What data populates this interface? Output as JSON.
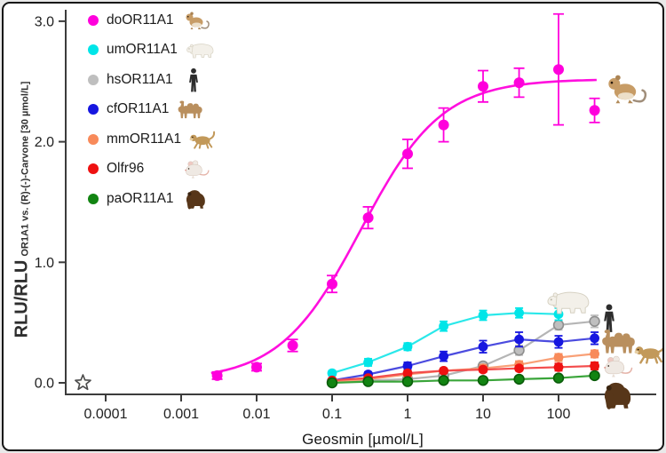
{
  "figure": {
    "background": "#ffffff",
    "border_color": "#141414",
    "axis_color": "#3c3c3c"
  },
  "legend": {
    "items": [
      {
        "label": "doOR11A1",
        "color": "#ff00dc",
        "icon": "gerbil-icon"
      },
      {
        "label": "umOR11A1",
        "color": "#00e5e8",
        "icon": "polar-bear-icon"
      },
      {
        "label": "hsOR11A1",
        "color": "#bfbfbf",
        "icon": "human-icon"
      },
      {
        "label": "cfOR11A1",
        "color": "#1616e0",
        "icon": "camel-icon"
      },
      {
        "label": "mmOR11A1",
        "color": "#f88a5a",
        "icon": "monkey-icon"
      },
      {
        "label": "Olfr96",
        "color": "#ee1111",
        "icon": "mouse-icon"
      },
      {
        "label": "paOR11A1",
        "color": "#128412",
        "icon": "gorilla-icon"
      }
    ]
  },
  "chart_data": {
    "type": "scatter",
    "subtype": "dose-response curves with error bars, log x-axis",
    "title": "",
    "xlabel": "Geosmin [µmol/L]",
    "ylabel_main": "RLU/RLU",
    "ylabel_sub": "OR1A1 vs. (R)-(-)-Carvone [30 µmol/L]",
    "x_scale": "log10",
    "xlim": [
      3e-05,
      700
    ],
    "ylim": [
      -0.1,
      3.1
    ],
    "grid": false,
    "legend_position": "top-left inside plot",
    "x_ticks": [
      {
        "value": 0.0001,
        "label": "0.0001"
      },
      {
        "value": 0.001,
        "label": "0.001"
      },
      {
        "value": 0.01,
        "label": "0.01"
      },
      {
        "value": 0.1,
        "label": "0.1"
      },
      {
        "value": 1,
        "label": "1"
      },
      {
        "value": 10,
        "label": "10"
      },
      {
        "value": 100,
        "label": "100"
      }
    ],
    "y_ticks": [
      {
        "value": 0,
        "label": "0.0"
      },
      {
        "value": 1,
        "label": "1.0"
      },
      {
        "value": 2,
        "label": "2.0"
      },
      {
        "value": 3,
        "label": "3.0"
      }
    ],
    "control_marker": {
      "shape": "open-star",
      "x": 5e-05,
      "y": 0
    },
    "series": [
      {
        "name": "doOR11A1",
        "color": "#ff00dc",
        "line_color": "#ff0fde",
        "x": [
          0.003,
          0.01,
          0.03,
          0.1,
          0.3,
          1,
          3,
          10,
          30,
          100,
          300
        ],
        "y": [
          0.06,
          0.13,
          0.31,
          0.82,
          1.37,
          1.9,
          2.14,
          2.46,
          2.49,
          2.6,
          2.26
        ],
        "err": [
          0.03,
          0.03,
          0.05,
          0.07,
          0.09,
          0.12,
          0.14,
          0.13,
          0.12,
          0.46,
          0.1
        ],
        "fit": {
          "bottom": 0.02,
          "top": 2.52,
          "ec50": 0.24,
          "hill": 0.81,
          "range": [
            0.0025,
            320
          ]
        }
      },
      {
        "name": "umOR11A1",
        "color": "#00e5e8",
        "line_color": "#2ae8ea",
        "x": [
          0.1,
          0.3,
          1,
          3,
          10,
          30,
          100
        ],
        "y": [
          0.08,
          0.17,
          0.3,
          0.47,
          0.56,
          0.58,
          0.57
        ],
        "err": [
          0.02,
          0.03,
          0.03,
          0.04,
          0.04,
          0.04,
          0.05
        ]
      },
      {
        "name": "hsOR11A1",
        "color": "#bfbfbf",
        "line_color": "#b5b5b5",
        "marker_stroke": "#8f8f8f",
        "x": [
          0.1,
          0.3,
          1,
          3,
          10,
          30,
          100,
          300
        ],
        "y": [
          0.01,
          0.02,
          0.03,
          0.06,
          0.14,
          0.27,
          0.48,
          0.51
        ],
        "err": [
          0.01,
          0.01,
          0.01,
          0.02,
          0.03,
          0.04,
          0.04,
          0.05
        ]
      },
      {
        "name": "cfOR11A1",
        "color": "#1616e0",
        "line_color": "#4b4bdf",
        "x": [
          0.1,
          0.3,
          1,
          3,
          10,
          30,
          100,
          300
        ],
        "y": [
          0.02,
          0.07,
          0.14,
          0.22,
          0.3,
          0.36,
          0.34,
          0.37
        ],
        "err": [
          0.01,
          0.02,
          0.03,
          0.04,
          0.05,
          0.06,
          0.05,
          0.05
        ]
      },
      {
        "name": "mmOR11A1",
        "color": "#f88a5a",
        "line_color": "#f9a077",
        "x": [
          0.1,
          0.3,
          1,
          3,
          10,
          30,
          100,
          300
        ],
        "y": [
          0.01,
          0.03,
          0.07,
          0.1,
          0.12,
          0.15,
          0.21,
          0.24
        ],
        "err": [
          0.01,
          0.01,
          0.02,
          0.02,
          0.03,
          0.03,
          0.03,
          0.03
        ]
      },
      {
        "name": "Olfr96",
        "color": "#ee1111",
        "line_color": "#f34d4d",
        "x": [
          0.1,
          0.3,
          1,
          3,
          10,
          30,
          100,
          300
        ],
        "y": [
          0.02,
          0.04,
          0.08,
          0.1,
          0.11,
          0.12,
          0.13,
          0.14
        ],
        "err": [
          0.01,
          0.01,
          0.02,
          0.02,
          0.02,
          0.02,
          0.03,
          0.03
        ]
      },
      {
        "name": "paOR11A1",
        "color": "#128412",
        "line_color": "#3aa53a",
        "marker_stroke": "#0a5c0a",
        "x": [
          0.1,
          0.3,
          1,
          3,
          10,
          30,
          100,
          300
        ],
        "y": [
          0.0,
          0.01,
          0.01,
          0.02,
          0.02,
          0.03,
          0.04,
          0.06
        ],
        "err": [
          0.0,
          0.0,
          0.01,
          0.01,
          0.01,
          0.01,
          0.02,
          0.02
        ]
      }
    ],
    "plot_icons": [
      "gerbil",
      "polar-bear",
      "human",
      "camel",
      "monkey",
      "mouse",
      "gorilla"
    ]
  }
}
